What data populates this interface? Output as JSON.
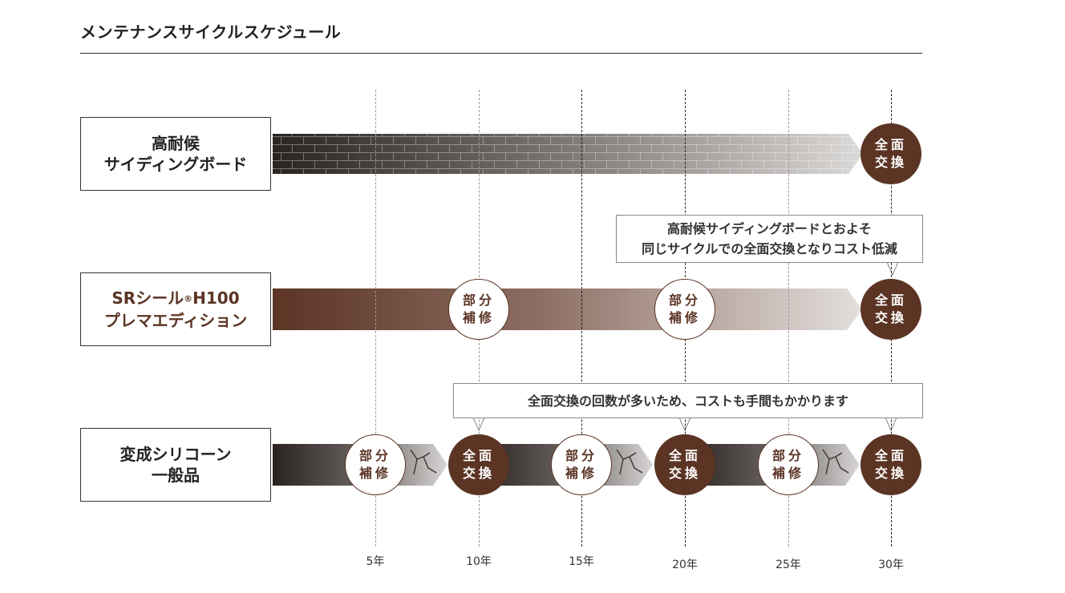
{
  "title": "メンテナンスサイクルスケジュール",
  "years": [
    "5年",
    "10年",
    "15年",
    "20年",
    "25年",
    "30年"
  ],
  "rows": [
    {
      "label_line1": "高耐候",
      "label_line2": "サイディングボード"
    },
    {
      "label_line1_main": "SRシール",
      "label_line1_reg": "®",
      "label_line1_tail": "H100",
      "label_line2": "プレマエディション"
    },
    {
      "label_line1": "変成シリコーン",
      "label_line2": "一般品"
    }
  ],
  "circles": {
    "full_line1": "全面",
    "full_line2": "交換",
    "part_line1": "部分",
    "part_line2": "補修"
  },
  "callouts": {
    "sr": {
      "line1": "高耐候サイディングボードとおよそ",
      "line2": "同じサイクルでの全面交換となりコスト低減"
    },
    "silicone": {
      "line1": "全面交換の回数が多いため、コストも手間もかかります"
    }
  },
  "colors": {
    "accent_brown": "#5b3424",
    "dark": "#2a2320"
  }
}
